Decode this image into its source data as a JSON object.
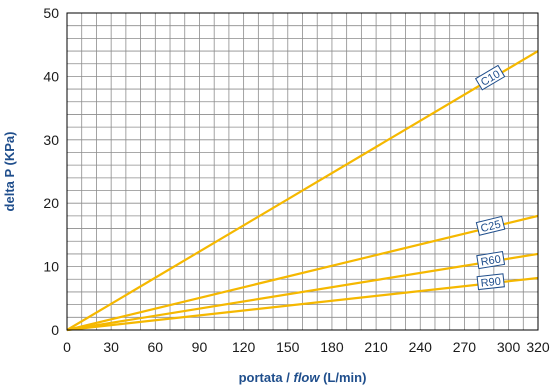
{
  "chart_data": {
    "type": "line",
    "xlabel": "portata / flow (L/min)",
    "xlabel_parts": {
      "normal": "portata / ",
      "italic": "flow",
      "unit": " (L/min)"
    },
    "ylabel": "delta P (KPa)",
    "xlim": [
      0,
      320
    ],
    "ylim": [
      0,
      50
    ],
    "x_ticks": [
      0,
      30,
      60,
      90,
      120,
      150,
      180,
      210,
      240,
      270,
      300,
      320
    ],
    "x_minor_step": 10,
    "y_ticks": [
      0,
      10,
      20,
      30,
      40,
      50
    ],
    "y_minor_step": 2,
    "grid": true,
    "line_color": "#f5b800",
    "series": [
      {
        "name": "C10",
        "points": [
          [
            0,
            0
          ],
          [
            320,
            44
          ]
        ]
      },
      {
        "name": "C25",
        "points": [
          [
            0,
            0
          ],
          [
            320,
            18
          ]
        ]
      },
      {
        "name": "R60",
        "points": [
          [
            0,
            0
          ],
          [
            320,
            12
          ]
        ]
      },
      {
        "name": "R90",
        "points": [
          [
            0,
            0
          ],
          [
            320,
            8.2
          ]
        ]
      }
    ]
  }
}
